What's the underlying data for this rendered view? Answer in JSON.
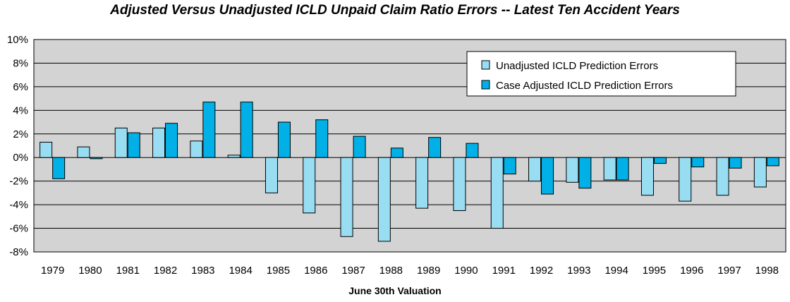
{
  "chart_data": {
    "type": "bar",
    "title": "Adjusted Versus Unadjusted ICLD Unpaid Claim Ratio Errors -- Latest Ten Accident Years",
    "xlabel": "June 30th Valuation",
    "ylabel": "",
    "categories": [
      "1979",
      "1980",
      "1981",
      "1982",
      "1983",
      "1984",
      "1985",
      "1986",
      "1987",
      "1988",
      "1989",
      "1990",
      "1991",
      "1992",
      "1993",
      "1994",
      "1995",
      "1996",
      "1997",
      "1998"
    ],
    "series": [
      {
        "name": "Unadjusted ICLD Prediction Errors",
        "color": "#99ddf2",
        "values": [
          1.3,
          0.9,
          2.5,
          2.5,
          1.4,
          0.2,
          -3.0,
          -4.7,
          -6.7,
          -7.1,
          -4.3,
          -4.5,
          -6.0,
          -2.0,
          -2.1,
          -1.9,
          -3.2,
          -3.7,
          -3.2,
          -2.5
        ]
      },
      {
        "name": "Case Adjusted ICLD Prediction Errors",
        "color": "#00b0e6",
        "values": [
          -1.8,
          -0.1,
          2.1,
          2.9,
          4.7,
          4.7,
          3.0,
          3.2,
          1.8,
          0.8,
          1.7,
          1.2,
          -1.4,
          -3.1,
          -2.6,
          -1.9,
          -0.5,
          -0.8,
          -0.9,
          -0.7
        ]
      }
    ],
    "ylim": [
      -8,
      10
    ],
    "yticks": [
      "10%",
      "8%",
      "6%",
      "4%",
      "2%",
      "0%",
      "-2%",
      "-4%",
      "-6%",
      "-8%"
    ],
    "grid": true,
    "legend_position": "top-right",
    "plot_background": "#d3d3d3"
  }
}
